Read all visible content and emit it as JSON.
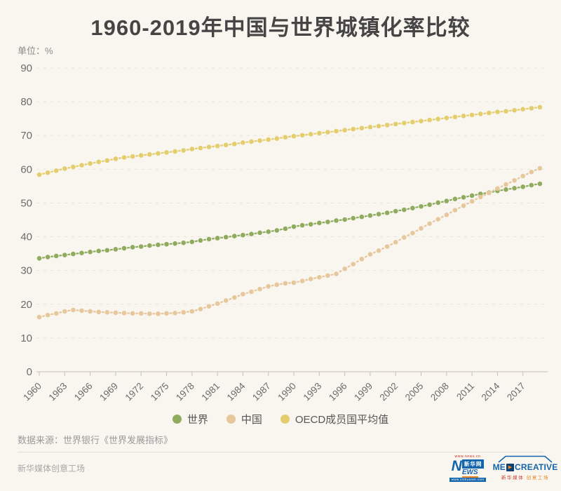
{
  "page": {
    "title": "1960-2019年中国与世界城镇化率比较",
    "unit_label": "单位：%",
    "source": "数据来源：世界银行《世界发展指标》",
    "footer_brand": "新华媒体创意工场"
  },
  "colors": {
    "background": "#f9f6f0",
    "title_text": "#454545",
    "grid": "#e8e3d9",
    "axis": "#c6c2b8",
    "axis_text": "#6b6b6b",
    "legend_text": "#555555",
    "world": "#8fab5d",
    "china": "#e7c79c",
    "oecd": "#e3cd6d",
    "logo_blue": "#1565ad",
    "logo_orange": "#f5861f",
    "logo_red": "#cc2a1e"
  },
  "legend": [
    {
      "label": "世界",
      "color_key": "world"
    },
    {
      "label": "中国",
      "color_key": "china"
    },
    {
      "label": "OECD成员国平均值",
      "color_key": "oecd"
    }
  ],
  "logos": {
    "xinhua_url_top": "www.news.cn",
    "xinhua_n": "N",
    "xinhua_name": "新华网",
    "xinhua_ews": "EWS",
    "xinhua_url_bottom": "www.xinhuanet.com",
    "med_me": "ME",
    "med_creative": "CREATIVE",
    "med_sub_left": "新华媒体",
    "med_sub_right": "创意工场"
  },
  "chart_data": {
    "type": "line",
    "title": "1960-2019年中国与世界城镇化率比较",
    "ylabel": "%",
    "ylim": [
      0,
      90
    ],
    "yticks": [
      0,
      10,
      20,
      30,
      40,
      50,
      60,
      70,
      80,
      90
    ],
    "grid": "horizontal-dashed",
    "legend_position": "bottom",
    "marker": "dot-with-dashed-line",
    "x": [
      1960,
      1961,
      1962,
      1963,
      1964,
      1965,
      1966,
      1967,
      1968,
      1969,
      1970,
      1971,
      1972,
      1973,
      1974,
      1975,
      1976,
      1977,
      1978,
      1979,
      1980,
      1981,
      1982,
      1983,
      1984,
      1985,
      1986,
      1987,
      1988,
      1989,
      1990,
      1991,
      1992,
      1993,
      1994,
      1995,
      1996,
      1997,
      1998,
      1999,
      2000,
      2001,
      2002,
      2003,
      2004,
      2005,
      2006,
      2007,
      2008,
      2009,
      2010,
      2011,
      2012,
      2013,
      2014,
      2015,
      2016,
      2017,
      2018,
      2019
    ],
    "xtick_years": [
      1960,
      1963,
      1966,
      1969,
      1972,
      1975,
      1978,
      1981,
      1984,
      1987,
      1990,
      1993,
      1996,
      1999,
      2002,
      2005,
      2008,
      2011,
      2014,
      2017
    ],
    "series": [
      {
        "name": "世界",
        "color": "#8fab5d",
        "values": [
          33.6,
          34.0,
          34.3,
          34.6,
          34.9,
          35.2,
          35.5,
          35.8,
          36.0,
          36.3,
          36.6,
          36.9,
          37.1,
          37.4,
          37.6,
          37.8,
          38.0,
          38.2,
          38.5,
          38.9,
          39.3,
          39.6,
          39.9,
          40.2,
          40.5,
          40.8,
          41.2,
          41.5,
          41.9,
          42.4,
          43.0,
          43.4,
          43.7,
          44.1,
          44.4,
          44.8,
          45.1,
          45.5,
          45.9,
          46.3,
          46.7,
          47.1,
          47.6,
          48.0,
          48.5,
          49.0,
          49.5,
          50.1,
          50.6,
          51.2,
          51.7,
          52.2,
          52.7,
          53.1,
          53.6,
          54.0,
          54.4,
          54.8,
          55.3,
          55.7
        ]
      },
      {
        "name": "中国",
        "color": "#e7c79c",
        "values": [
          16.2,
          16.8,
          17.3,
          17.9,
          18.3,
          18.1,
          17.9,
          17.7,
          17.6,
          17.5,
          17.4,
          17.3,
          17.3,
          17.2,
          17.2,
          17.3,
          17.4,
          17.6,
          17.9,
          18.6,
          19.4,
          20.2,
          21.1,
          22.0,
          23.0,
          23.7,
          24.5,
          25.3,
          25.8,
          26.2,
          26.4,
          26.9,
          27.5,
          28.0,
          28.5,
          29.0,
          30.5,
          31.9,
          33.4,
          34.8,
          35.9,
          37.1,
          38.4,
          39.8,
          41.1,
          42.5,
          43.9,
          45.2,
          46.5,
          47.9,
          49.2,
          50.5,
          51.8,
          53.0,
          54.3,
          55.5,
          56.7,
          58.0,
          59.2,
          60.3
        ]
      },
      {
        "name": "OECD成员国平均值",
        "color": "#e3cd6d",
        "values": [
          58.4,
          59.0,
          59.6,
          60.2,
          60.7,
          61.2,
          61.7,
          62.2,
          62.6,
          63.1,
          63.5,
          63.8,
          64.1,
          64.4,
          64.7,
          65.0,
          65.3,
          65.6,
          66.0,
          66.3,
          66.6,
          66.9,
          67.2,
          67.5,
          67.9,
          68.2,
          68.5,
          68.8,
          69.1,
          69.5,
          69.8,
          70.1,
          70.4,
          70.7,
          71.0,
          71.3,
          71.6,
          71.9,
          72.2,
          72.5,
          72.8,
          73.1,
          73.4,
          73.7,
          74.0,
          74.3,
          74.6,
          74.9,
          75.2,
          75.5,
          75.8,
          76.1,
          76.4,
          76.7,
          77.0,
          77.2,
          77.5,
          77.8,
          78.1,
          78.4
        ]
      }
    ]
  }
}
